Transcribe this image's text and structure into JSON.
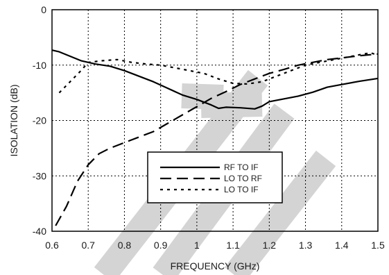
{
  "chart_data": {
    "type": "line",
    "title": "",
    "xlabel": "FREQUENCY (GHz)",
    "ylabel": "ISOLATION (dB)",
    "xlim": [
      0.6,
      1.5
    ],
    "ylim": [
      -40,
      0
    ],
    "x_ticks": [
      "0.6",
      "0.7",
      "0.8",
      "0.9",
      "1",
      "1.1",
      "1.2",
      "1.3",
      "1.4",
      "1.5"
    ],
    "y_ticks": [
      "0",
      "-10",
      "-20",
      "-30",
      "-40"
    ],
    "grid": true,
    "legend_position": "center-bottom",
    "watermark_color": "#d4d4d4",
    "series": [
      {
        "name": "RF TO IF",
        "style": "solid",
        "x": [
          0.6,
          0.62,
          0.65,
          0.68,
          0.72,
          0.76,
          0.8,
          0.84,
          0.88,
          0.92,
          0.96,
          1.0,
          1.04,
          1.06,
          1.08,
          1.12,
          1.16,
          1.18,
          1.2,
          1.24,
          1.28,
          1.32,
          1.36,
          1.4,
          1.45,
          1.5
        ],
        "y": [
          -7.3,
          -7.6,
          -8.4,
          -9.2,
          -9.8,
          -10.2,
          -11.0,
          -12.0,
          -13.0,
          -14.2,
          -15.4,
          -16.2,
          -17.2,
          -17.8,
          -17.6,
          -17.7,
          -17.9,
          -17.4,
          -16.6,
          -16.1,
          -15.6,
          -14.9,
          -14.0,
          -13.5,
          -12.9,
          -12.4
        ]
      },
      {
        "name": "LO TO RF",
        "style": "dashed",
        "x": [
          0.61,
          0.64,
          0.67,
          0.7,
          0.73,
          0.76,
          0.8,
          0.84,
          0.88,
          0.92,
          0.96,
          1.0,
          1.04,
          1.08,
          1.12,
          1.16,
          1.2,
          1.24,
          1.28,
          1.32,
          1.36,
          1.4,
          1.45,
          1.5
        ],
        "y": [
          -39.0,
          -35.5,
          -31.0,
          -28.0,
          -26.0,
          -25.0,
          -24.0,
          -23.0,
          -22.0,
          -20.5,
          -19.0,
          -17.5,
          -16.0,
          -14.8,
          -13.5,
          -12.5,
          -11.5,
          -10.8,
          -10.0,
          -9.5,
          -9.0,
          -8.7,
          -8.3,
          -8.0
        ]
      },
      {
        "name": "LO TO IF",
        "style": "dotted",
        "x": [
          0.62,
          0.65,
          0.68,
          0.7,
          0.74,
          0.78,
          0.82,
          0.86,
          0.9,
          0.94,
          0.98,
          1.02,
          1.06,
          1.1,
          1.14,
          1.18,
          1.22,
          1.26,
          1.3,
          1.34,
          1.38,
          1.42,
          1.46,
          1.48,
          1.5
        ],
        "y": [
          -15.0,
          -13.0,
          -11.0,
          -9.5,
          -9.2,
          -9.0,
          -9.5,
          -9.8,
          -10.0,
          -10.5,
          -11.0,
          -11.5,
          -12.5,
          -13.3,
          -13.4,
          -13.0,
          -12.0,
          -11.0,
          -10.0,
          -9.5,
          -9.0,
          -8.5,
          -8.0,
          -7.8,
          -8.2
        ]
      }
    ]
  }
}
